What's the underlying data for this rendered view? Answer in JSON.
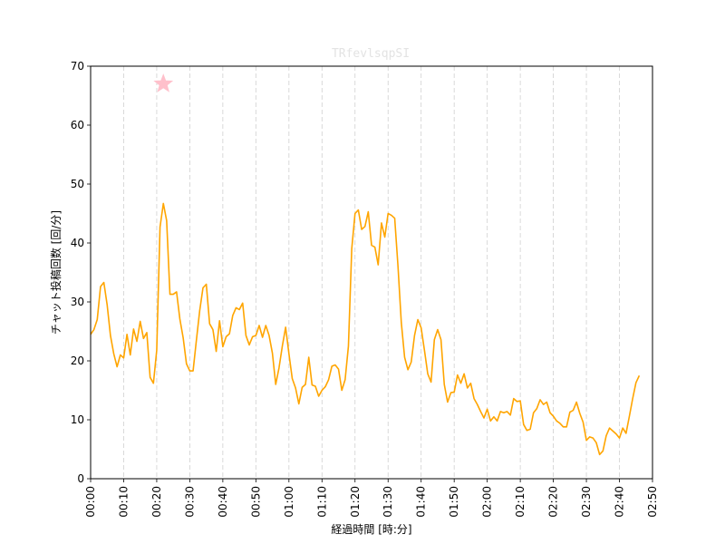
{
  "chart_data": {
    "type": "line",
    "title": "TRfevlsqpSI",
    "xlabel": "経過時間 [時:分]",
    "ylabel": "チャット投稿回数 [回/分]",
    "xlim": [
      0,
      170
    ],
    "ylim": [
      0,
      70
    ],
    "x_ticks": [
      0,
      10,
      20,
      30,
      40,
      50,
      60,
      70,
      80,
      90,
      100,
      110,
      120,
      130,
      140,
      150,
      160,
      170
    ],
    "x_tick_labels": [
      "00:00",
      "00:10",
      "00:20",
      "00:30",
      "00:40",
      "00:50",
      "01:00",
      "01:10",
      "01:20",
      "01:30",
      "01:40",
      "01:50",
      "02:00",
      "02:10",
      "02:20",
      "02:30",
      "02:40",
      "02:50"
    ],
    "y_ticks": [
      0,
      10,
      20,
      30,
      40,
      50,
      60,
      70
    ],
    "y_tick_labels": [
      "0",
      "10",
      "20",
      "30",
      "40",
      "50",
      "60",
      "70"
    ],
    "grid": "vertical-dashed",
    "line_color": "#ffa500",
    "marker": {
      "x": 22,
      "y": 67,
      "shape": "star",
      "color": "#ffc0cb"
    },
    "series": [
      {
        "values": [
          [
            0,
            24.5
          ],
          [
            1,
            25.3
          ],
          [
            2,
            27.0
          ],
          [
            3,
            32.6
          ],
          [
            4,
            33.3
          ],
          [
            5,
            29.5
          ],
          [
            6,
            24.3
          ],
          [
            7,
            21.2
          ],
          [
            8,
            19.0
          ],
          [
            9,
            21.0
          ],
          [
            10,
            20.5
          ],
          [
            11,
            24.5
          ],
          [
            12,
            21.0
          ],
          [
            13,
            25.4
          ],
          [
            14,
            23.3
          ],
          [
            15,
            26.7
          ],
          [
            16,
            23.8
          ],
          [
            17,
            24.8
          ],
          [
            18,
            17.2
          ],
          [
            19,
            16.2
          ],
          [
            20,
            21.8
          ],
          [
            21,
            42.7
          ],
          [
            22,
            46.7
          ],
          [
            23,
            43.8
          ],
          [
            24,
            31.3
          ],
          [
            25,
            31.3
          ],
          [
            26,
            31.7
          ],
          [
            27,
            27.1
          ],
          [
            28,
            23.9
          ],
          [
            29,
            19.5
          ],
          [
            30,
            18.3
          ],
          [
            31,
            18.3
          ],
          [
            32,
            23.5
          ],
          [
            33,
            28.5
          ],
          [
            34,
            32.4
          ],
          [
            35,
            33.0
          ],
          [
            36,
            26.3
          ],
          [
            37,
            25.3
          ],
          [
            38,
            21.6
          ],
          [
            39,
            26.8
          ],
          [
            40,
            22.4
          ],
          [
            41,
            24.1
          ],
          [
            42,
            24.6
          ],
          [
            43,
            27.7
          ],
          [
            44,
            29.0
          ],
          [
            45,
            28.7
          ],
          [
            46,
            29.8
          ],
          [
            47,
            24.3
          ],
          [
            48,
            22.7
          ],
          [
            49,
            24.1
          ],
          [
            50,
            24.3
          ],
          [
            51,
            26.0
          ],
          [
            52,
            24.0
          ],
          [
            53,
            26.0
          ],
          [
            54,
            24.3
          ],
          [
            55,
            21.3
          ],
          [
            56,
            16.0
          ],
          [
            57,
            18.8
          ],
          [
            58,
            22.5
          ],
          [
            59,
            25.7
          ],
          [
            60,
            21.2
          ],
          [
            61,
            17.0
          ],
          [
            62,
            15.4
          ],
          [
            63,
            12.7
          ],
          [
            64,
            15.5
          ],
          [
            65,
            16.0
          ],
          [
            66,
            20.6
          ],
          [
            67,
            15.9
          ],
          [
            68,
            15.7
          ],
          [
            69,
            14.0
          ],
          [
            70,
            15.0
          ],
          [
            71,
            15.6
          ],
          [
            72,
            16.8
          ],
          [
            73,
            19.1
          ],
          [
            74,
            19.3
          ],
          [
            75,
            18.6
          ],
          [
            76,
            15.0
          ],
          [
            77,
            16.8
          ],
          [
            78,
            22.5
          ],
          [
            79,
            39.0
          ],
          [
            80,
            45.0
          ],
          [
            81,
            45.6
          ],
          [
            82,
            42.3
          ],
          [
            83,
            42.8
          ],
          [
            84,
            45.3
          ],
          [
            85,
            39.6
          ],
          [
            86,
            39.3
          ],
          [
            87,
            36.3
          ],
          [
            88,
            43.4
          ],
          [
            89,
            41.0
          ],
          [
            90,
            45.0
          ],
          [
            91,
            44.7
          ],
          [
            92,
            44.2
          ],
          [
            93,
            36.0
          ],
          [
            94,
            26.5
          ],
          [
            95,
            20.6
          ],
          [
            96,
            18.5
          ],
          [
            97,
            19.8
          ],
          [
            98,
            24.3
          ],
          [
            99,
            27.0
          ],
          [
            100,
            25.6
          ],
          [
            101,
            21.8
          ],
          [
            102,
            17.8
          ],
          [
            103,
            16.4
          ],
          [
            104,
            23.6
          ],
          [
            105,
            25.3
          ],
          [
            106,
            23.6
          ],
          [
            107,
            16.0
          ],
          [
            108,
            13.0
          ],
          [
            109,
            14.6
          ],
          [
            110,
            14.7
          ],
          [
            111,
            17.6
          ],
          [
            112,
            16.2
          ],
          [
            113,
            17.8
          ],
          [
            114,
            15.4
          ],
          [
            115,
            16.2
          ],
          [
            116,
            13.6
          ],
          [
            117,
            12.6
          ],
          [
            118,
            11.4
          ],
          [
            119,
            10.3
          ],
          [
            120,
            11.8
          ],
          [
            121,
            9.8
          ],
          [
            122,
            10.5
          ],
          [
            123,
            9.8
          ],
          [
            124,
            11.4
          ],
          [
            125,
            11.2
          ],
          [
            126,
            11.4
          ],
          [
            127,
            10.8
          ],
          [
            128,
            13.6
          ],
          [
            129,
            13.1
          ],
          [
            130,
            13.2
          ],
          [
            131,
            9.2
          ],
          [
            132,
            8.2
          ],
          [
            133,
            8.4
          ],
          [
            134,
            11.2
          ],
          [
            135,
            11.9
          ],
          [
            136,
            13.4
          ],
          [
            137,
            12.6
          ],
          [
            138,
            13.0
          ],
          [
            139,
            11.2
          ],
          [
            140,
            10.6
          ],
          [
            141,
            9.8
          ],
          [
            142,
            9.4
          ],
          [
            143,
            8.8
          ],
          [
            144,
            8.8
          ],
          [
            145,
            11.3
          ],
          [
            146,
            11.6
          ],
          [
            147,
            13.0
          ],
          [
            148,
            11.1
          ],
          [
            149,
            9.6
          ],
          [
            150,
            6.5
          ],
          [
            151,
            7.1
          ],
          [
            152,
            6.9
          ],
          [
            153,
            6.1
          ],
          [
            154,
            4.1
          ],
          [
            155,
            4.7
          ],
          [
            156,
            7.3
          ],
          [
            157,
            8.6
          ],
          [
            158,
            8.1
          ],
          [
            159,
            7.6
          ],
          [
            160,
            6.9
          ],
          [
            161,
            8.6
          ],
          [
            162,
            7.7
          ],
          [
            163,
            10.6
          ],
          [
            164,
            13.6
          ],
          [
            165,
            16.3
          ],
          [
            166,
            17.5
          ]
        ]
      }
    ]
  }
}
